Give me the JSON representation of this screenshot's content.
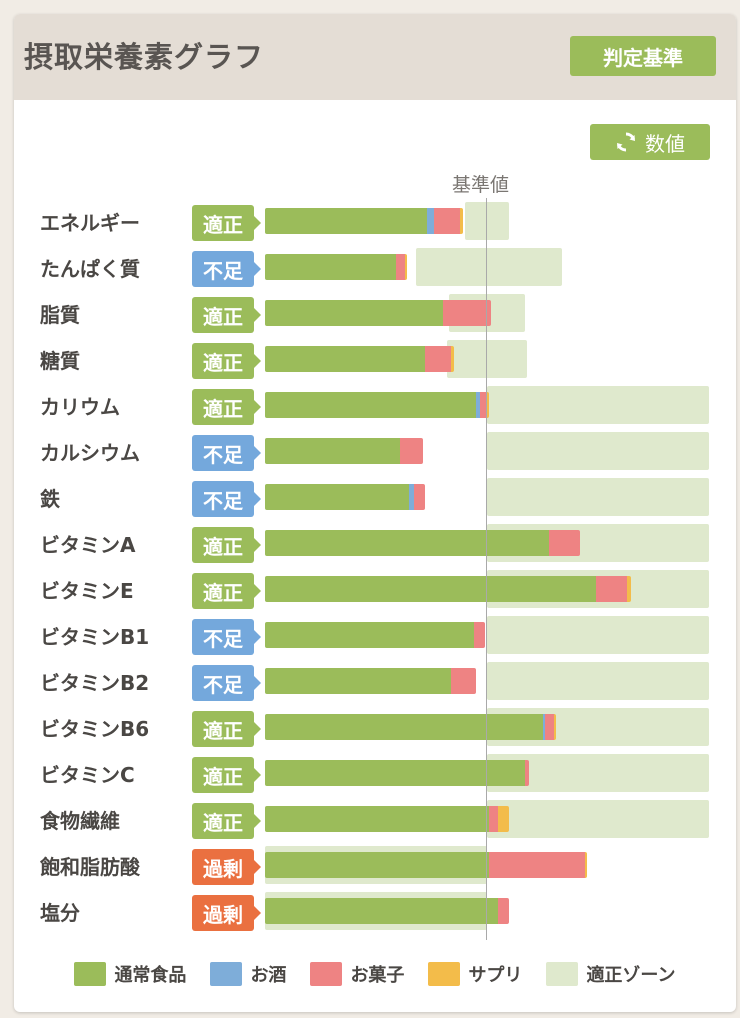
{
  "header": {
    "title": "摂取栄養素グラフ",
    "criteria_button": "判定基準"
  },
  "toolbar": {
    "values_button": "数値"
  },
  "reference_label": "基準値",
  "colors": {
    "normal_food": "#9bbc5a",
    "alcohol": "#7eadd9",
    "snacks": "#ee8383",
    "supplement": "#f3bc4a",
    "optimal_zone": "#dfe9cd",
    "badge_ok": "#9bbc5a",
    "badge_low": "#74a8dc",
    "badge_high": "#ea7040"
  },
  "legend": [
    {
      "label": "通常食品",
      "color": "#9bbc5a"
    },
    {
      "label": "お酒",
      "color": "#7eadd9"
    },
    {
      "label": "お菓子",
      "color": "#ee8383"
    },
    {
      "label": "サプリ",
      "color": "#f3bc4a"
    },
    {
      "label": "適正ゾーン",
      "color": "#dfe9cd"
    }
  ],
  "chart_data": {
    "type": "bar",
    "orientation": "horizontal",
    "stacked": true,
    "x_unit": "percent_of_reference",
    "reference_value": 100,
    "categories": [
      "エネルギー",
      "たんぱく質",
      "脂質",
      "糖質",
      "カリウム",
      "カルシウム",
      "鉄",
      "ビタミンA",
      "ビタミンE",
      "ビタミンB1",
      "ビタミンB2",
      "ビタミンB6",
      "ビタミンC",
      "食物繊維",
      "飽和脂肪酸",
      "塩分"
    ],
    "status": [
      "適正",
      "不足",
      "適正",
      "適正",
      "適正",
      "不足",
      "不足",
      "適正",
      "適正",
      "不足",
      "不足",
      "適正",
      "適正",
      "適正",
      "過剰",
      "過剰"
    ],
    "series": [
      {
        "name": "通常食品",
        "values": [
          73,
          59,
          80,
          72,
          95,
          61,
          65,
          128,
          149,
          94,
          84,
          125,
          117,
          101,
          101,
          105
        ]
      },
      {
        "name": "お酒",
        "values": [
          3,
          0,
          0,
          0,
          2,
          0,
          2,
          0,
          0,
          0,
          0,
          1,
          0,
          0,
          0,
          0
        ]
      },
      {
        "name": "お菓子",
        "values": [
          12,
          4,
          22,
          12,
          3,
          10,
          5,
          14,
          14,
          5,
          11,
          4,
          2,
          4,
          43,
          5
        ]
      },
      {
        "name": "サプリ",
        "values": [
          1,
          1,
          0,
          1,
          1,
          0,
          0,
          0,
          2,
          0,
          0,
          1,
          0,
          5,
          1,
          0
        ]
      }
    ],
    "optimal_zone": [
      [
        90,
        110
      ],
      [
        68,
        134
      ],
      [
        83,
        117
      ],
      [
        82,
        118
      ],
      [
        100,
        200
      ],
      [
        100,
        200
      ],
      [
        100,
        200
      ],
      [
        100,
        200
      ],
      [
        100,
        200
      ],
      [
        100,
        200
      ],
      [
        100,
        200
      ],
      [
        100,
        200
      ],
      [
        100,
        200
      ],
      [
        100,
        200
      ],
      [
        0,
        100
      ],
      [
        0,
        100
      ]
    ]
  }
}
